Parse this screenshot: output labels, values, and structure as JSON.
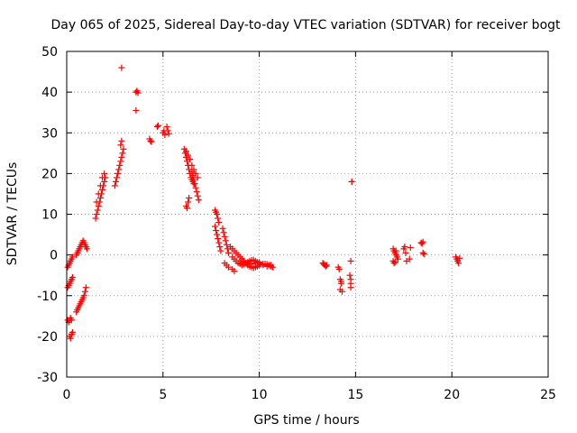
{
  "chart_data": {
    "type": "scatter",
    "title": "Day 065 of 2025, Sidereal Day-to-day VTEC variation (SDTVAR) for receiver bogt",
    "xlabel": "GPS time / hours",
    "ylabel": "SDTVAR / TECUs",
    "xlim": [
      0,
      25
    ],
    "ylim": [
      -30,
      50
    ],
    "xticks": [
      "0",
      "5",
      "10",
      "15",
      "20",
      "25"
    ],
    "yticks": [
      "-30",
      "-20",
      "-10",
      "0",
      "10",
      "20",
      "30",
      "40",
      "50"
    ],
    "grid": true,
    "marker": "+",
    "color": "#ff0000",
    "series": [
      {
        "name": "SDTVAR",
        "x": [
          0.05,
          0.1,
          0.15,
          0.2,
          0.25,
          0.3,
          0.05,
          0.1,
          0.15,
          0.2,
          0.25,
          0.3,
          0.05,
          0.1,
          0.15,
          0.2,
          0.25,
          0.15,
          0.2,
          0.25,
          0.3,
          0.5,
          0.55,
          0.6,
          0.65,
          0.7,
          0.75,
          0.8,
          0.85,
          0.9,
          0.95,
          1.0,
          1.05,
          0.5,
          0.55,
          0.6,
          0.65,
          0.7,
          0.75,
          0.8,
          0.85,
          0.9,
          0.95,
          1.0,
          1.5,
          1.55,
          1.6,
          1.65,
          1.7,
          1.75,
          1.8,
          1.85,
          1.9,
          1.95,
          2.0,
          1.55,
          1.65,
          1.75,
          1.85,
          1.95,
          2.5,
          2.55,
          2.6,
          2.65,
          2.7,
          2.75,
          2.8,
          2.85,
          2.9,
          2.95,
          2.85,
          2.8,
          3.6,
          3.65,
          3.7,
          3.6,
          4.3,
          4.35,
          4.4,
          4.7,
          4.75,
          5.0,
          5.05,
          5.1,
          5.2,
          5.25,
          5.3,
          6.1,
          6.15,
          6.2,
          6.25,
          6.3,
          6.35,
          6.4,
          6.45,
          6.5,
          6.55,
          6.6,
          6.2,
          6.3,
          6.4,
          6.5,
          6.5,
          6.55,
          6.6,
          6.65,
          6.7,
          6.75,
          6.8,
          6.85,
          6.6,
          6.7,
          6.8,
          6.2,
          6.25,
          6.3,
          6.35,
          7.7,
          7.75,
          7.8,
          7.85,
          7.9,
          7.7,
          7.75,
          7.8,
          7.85,
          7.9,
          7.95,
          8.0,
          8.1,
          8.15,
          8.2,
          8.25,
          8.3,
          8.35,
          8.4,
          8.5,
          8.6,
          8.7,
          8.8,
          8.9,
          9.0,
          9.1,
          9.2,
          9.3,
          9.4,
          9.5,
          9.6,
          9.7,
          9.8,
          9.9,
          10.0,
          10.1,
          10.2,
          10.3,
          10.4,
          10.5,
          10.6,
          10.7,
          8.6,
          8.7,
          8.8,
          8.9,
          9.0,
          9.1,
          9.2,
          9.3,
          9.4,
          9.5,
          9.6,
          9.7,
          9.8,
          9.9,
          10.0,
          10.2,
          10.4,
          10.6,
          9.0,
          9.2,
          9.4,
          9.6,
          9.8,
          10.0,
          8.2,
          8.3,
          8.4,
          8.6,
          8.7,
          13.3,
          13.35,
          13.4,
          13.45,
          13.5,
          14.1,
          14.15,
          14.2,
          14.25,
          14.3,
          14.2,
          14.25,
          14.7,
          14.75,
          14.75,
          14.75,
          14.8,
          16.95,
          17.0,
          17.05,
          17.1,
          17.15,
          17.2,
          16.95,
          17.0,
          17.05,
          17.1,
          17.5,
          17.55,
          17.6,
          17.65,
          17.8,
          17.85,
          18.4,
          18.45,
          18.5,
          18.55,
          18.5,
          20.2,
          20.25,
          20.3,
          20.35,
          20.4
        ],
        "y": [
          -8,
          -7.5,
          -7,
          -6.5,
          -6,
          -5.5,
          -3,
          -2.5,
          -2,
          -1.5,
          -1,
          -0.5,
          -16,
          -16.5,
          -16,
          -15.5,
          -16,
          -20,
          -20.5,
          -19.5,
          -19,
          0,
          0.5,
          1,
          1.5,
          2,
          2.5,
          3,
          3.5,
          3,
          2.5,
          2,
          1.5,
          -14,
          -13.5,
          -13,
          -12.5,
          -12,
          -11.5,
          -11,
          -10.5,
          -10,
          -9,
          -8,
          9,
          10,
          11,
          12,
          13,
          14,
          15,
          16,
          17,
          18,
          19,
          13,
          15,
          17,
          19,
          20,
          17,
          18,
          19,
          20,
          21,
          22,
          23,
          24,
          25,
          26,
          28,
          27,
          40,
          40.3,
          39.8,
          35.5,
          28.5,
          28,
          27.8,
          31.5,
          31.8,
          30,
          30.5,
          29.5,
          31.5,
          30.5,
          29.8,
          26,
          25,
          24,
          23,
          22,
          21,
          20,
          19,
          18.5,
          18,
          17.5,
          25.5,
          24.5,
          23.5,
          22,
          20.5,
          19.5,
          18.5,
          17.5,
          16.5,
          15.5,
          14.5,
          13.5,
          21,
          20,
          19,
          12,
          11.5,
          13,
          14,
          11,
          10.5,
          10,
          9,
          8,
          7,
          6,
          5,
          4,
          3,
          2,
          1,
          6.5,
          5.5,
          4.5,
          3.5,
          2.5,
          1.5,
          0.5,
          2,
          1.5,
          1,
          0.5,
          0,
          -0.5,
          -1,
          -1.5,
          -2,
          -2.5,
          -2.8,
          -3,
          -3.2,
          -3,
          -2.8,
          -2.5,
          -2.3,
          -2.2,
          -2.2,
          -2.3,
          -2.5,
          -2.8,
          -3,
          -0.5,
          -1,
          -1.5,
          -2,
          -2.2,
          -2.5,
          -2.3,
          -2,
          -1.8,
          -1.5,
          -1.3,
          -1.2,
          -1.5,
          -1.8,
          -2,
          -2.5,
          -2.8,
          -2.5,
          -1.5,
          -1.8,
          -2,
          -2.2,
          -2,
          -1.8,
          -2,
          -2.5,
          -3,
          -3.5,
          -4,
          -2,
          -2.3,
          -2.5,
          -2.8,
          -2.5,
          -3,
          -3.5,
          -6,
          -7,
          -9,
          -8.5,
          -6.5,
          -5,
          -6,
          -7,
          -8,
          18,
          1.5,
          1,
          0.5,
          0,
          -0.5,
          -1,
          -1.5,
          -2,
          -1.8,
          1,
          1.5,
          2,
          0.5,
          -1.5,
          -1,
          1.8,
          3,
          2.8,
          3.2,
          0.2,
          0.5,
          -0.5,
          -1,
          -1.5,
          -2,
          -0.8
        ]
      }
    ],
    "scatter_extra": {
      "x": [
        2.85,
        14.75,
        14.8
      ],
      "y": [
        46,
        -1.5,
        18
      ]
    }
  }
}
